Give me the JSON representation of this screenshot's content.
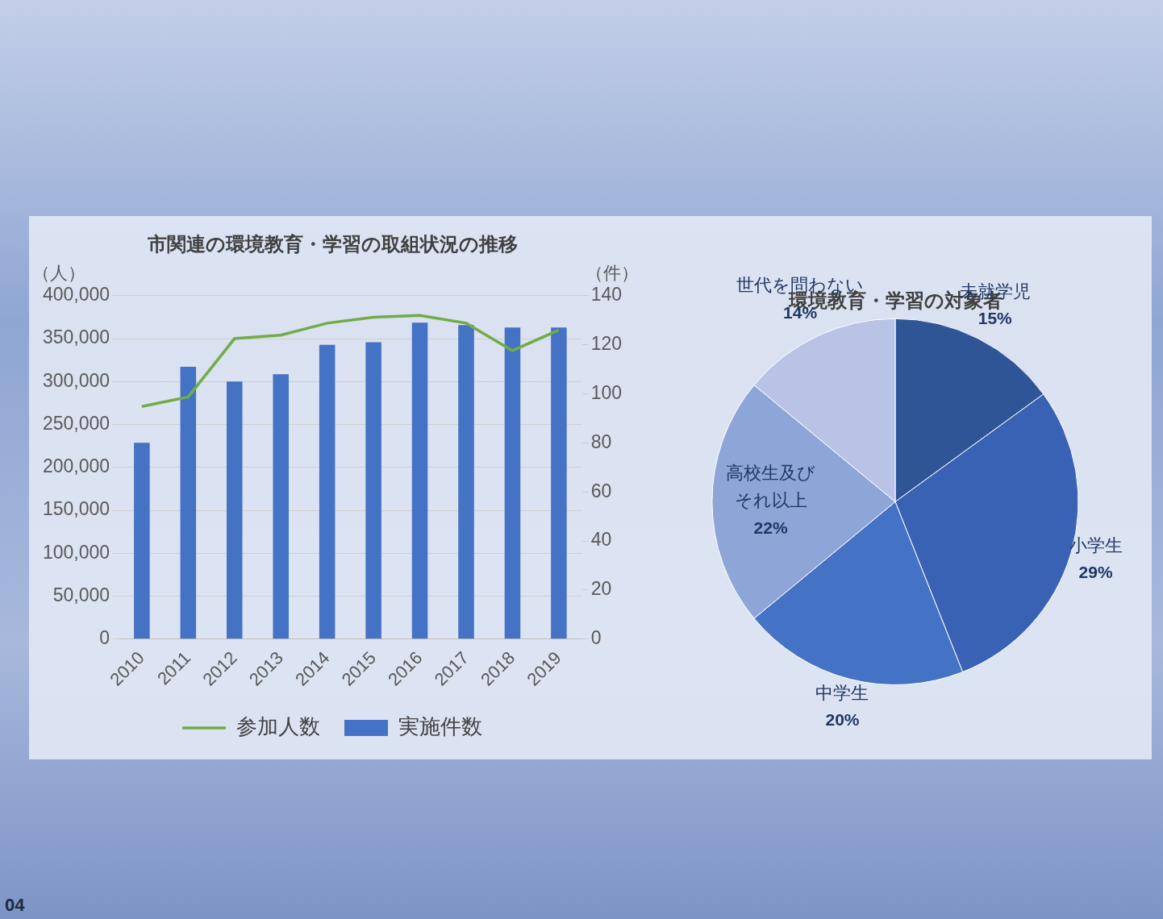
{
  "page_number": "04",
  "chart_data": [
    {
      "type": "bar",
      "title": "市関連の環境教育・学習の取組状況の推移",
      "y_label": "（人）",
      "y2_label": "（件）",
      "categories": [
        "2010",
        "2011",
        "2012",
        "2013",
        "2014",
        "2015",
        "2016",
        "2017",
        "2018",
        "2019"
      ],
      "series": [
        {
          "name": "実施件数",
          "type": "bar",
          "color": "#4472c4",
          "axis": "y2",
          "values": [
            80,
            111,
            105,
            108,
            120,
            121,
            129,
            128,
            127,
            127
          ]
        },
        {
          "name": "参加人数",
          "type": "line",
          "color": "#70ad47",
          "values": [
            271000,
            282000,
            350000,
            354000,
            368000,
            375000,
            377000,
            368000,
            336000,
            360000
          ]
        }
      ],
      "ylim": [
        0,
        400000
      ],
      "yticks": [
        0,
        {
          "value": 50000,
          "label": "50,000"
        },
        {
          "value": 100000,
          "label": "100,000"
        },
        {
          "value": 150000,
          "label": "150,000"
        },
        {
          "value": 200000,
          "label": "200,000"
        },
        {
          "value": 250000,
          "label": "250,000"
        },
        {
          "value": 300000,
          "label": "300,000"
        },
        {
          "value": 350000,
          "label": "350,000"
        },
        {
          "value": 400000,
          "label": "400,000"
        }
      ],
      "y2lim": [
        0,
        140
      ],
      "y2ticks": [
        0,
        20,
        40,
        60,
        80,
        100,
        120,
        140
      ],
      "grid": true,
      "legend": "bottom"
    },
    {
      "type": "pie",
      "title": "環境教育・学習の対象者",
      "categories": [
        "未就学児",
        "小学生",
        "中学生",
        "高校生及びそれ以上",
        "世代を問わない"
      ],
      "values": [
        15,
        29,
        20,
        22,
        14
      ],
      "value_labels": [
        "15%",
        "29%",
        "20%",
        "22%",
        "14%"
      ],
      "colors": [
        "#2f5597",
        "#3a62b4",
        "#4472c4",
        "#8ea5d8",
        "#b8c3e6"
      ],
      "data_labels": true
    }
  ]
}
